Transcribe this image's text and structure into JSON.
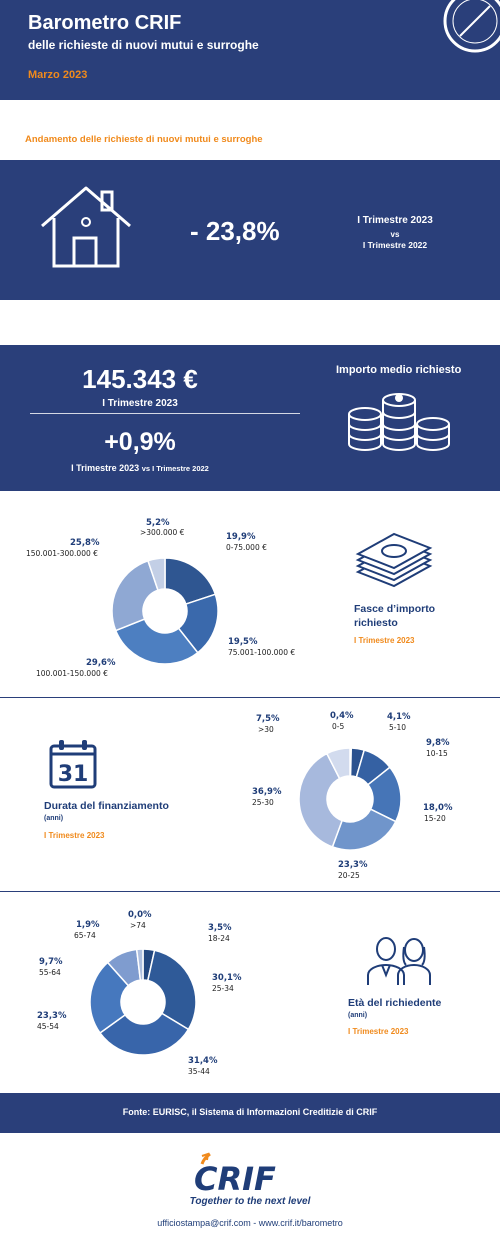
{
  "header": {
    "title": "Barometro CRIF",
    "subtitle": "delle richieste di nuovi mutui e surroghe",
    "date": "Marzo 2023"
  },
  "section_title": "Andamento delle richieste di nuovi mutui e surroghe",
  "trend": {
    "value": "- 23,8%",
    "period_a": "I Trimestre 2023",
    "vs": "vs",
    "period_b": "I Trimestre  2022"
  },
  "average": {
    "amount": "145.343 €",
    "amount_period": "I Trimestre 2023",
    "change": "+0,9%",
    "change_period": "I Trimestre 2023",
    "change_vs": "vs I Trimestre 2022",
    "title": "Importo medio richiesto"
  },
  "amount_bands": {
    "title_line1": "Fasce d’importo",
    "title_line2": "richiesto",
    "period": "I Trimestre  2023",
    "labels": [
      {
        "pct": "19,9%",
        "range": "0-75.000 €"
      },
      {
        "pct": "19,5%",
        "range": "75.001-100.000  €"
      },
      {
        "pct": "29,6%",
        "range": "100.001-150.000 €"
      },
      {
        "pct": "25,8%",
        "range": "150.001-300.000  €"
      },
      {
        "pct": "5,2%",
        "range": ">300.000  €"
      }
    ]
  },
  "duration": {
    "title": "Durata del finanziamento",
    "sub": "(anni)",
    "period": "I Trimestre  2023",
    "calendar_day": "31",
    "labels": [
      {
        "pct": "0,4%",
        "range": "0-5"
      },
      {
        "pct": "4,1%",
        "range": "5-10"
      },
      {
        "pct": "9,8%",
        "range": "10-15"
      },
      {
        "pct": "18,0%",
        "range": "15-20"
      },
      {
        "pct": "23,3%",
        "range": "20-25"
      },
      {
        "pct": "36,9%",
        "range": "25-30"
      },
      {
        "pct": "7,5%",
        "range": ">30"
      }
    ]
  },
  "age": {
    "title": "Età del richiedente",
    "sub": "(anni)",
    "period": "I Trimestre  2023",
    "labels": [
      {
        "pct": "3,5%",
        "range": "18-24"
      },
      {
        "pct": "30,1%",
        "range": "25-34"
      },
      {
        "pct": "31,4%",
        "range": "35-44"
      },
      {
        "pct": "23,3%",
        "range": "45-54"
      },
      {
        "pct": "9,7%",
        "range": "55-64"
      },
      {
        "pct": "1,9%",
        "range": "65-74"
      },
      {
        "pct": "0,0%",
        "range": ">74"
      }
    ]
  },
  "chart_data": [
    {
      "type": "pie",
      "categories": [
        "0-75.000 €",
        "75.001-100.000  €",
        "100.001-150.000 €",
        "150.001-300.000  €",
        ">300.000  €"
      ],
      "values": [
        19.9,
        19.5,
        29.6,
        25.8,
        5.2
      ],
      "colors": [
        "#2f5691",
        "#3a69ac",
        "#4d7fc1",
        "#8fa8d3",
        "#c3cfe6"
      ]
    },
    {
      "type": "pie",
      "categories": [
        "0-5",
        "5-10",
        "10-15",
        "15-20",
        "20-25",
        "25-30",
        ">30"
      ],
      "values": [
        0.4,
        4.1,
        9.8,
        18.0,
        23.3,
        36.9,
        7.5
      ],
      "colors": [
        "#23477f",
        "#2b528f",
        "#3561a3",
        "#4675b7",
        "#7095cb",
        "#a7b9dd",
        "#d2dbee"
      ]
    },
    {
      "type": "pie",
      "categories": [
        "18-24",
        "25-34",
        "35-44",
        "45-54",
        "55-64",
        "65-74",
        ">74"
      ],
      "values": [
        3.5,
        30.1,
        31.4,
        23.3,
        9.7,
        1.9,
        0.0
      ],
      "colors": [
        "#23477f",
        "#2f5a98",
        "#3865aa",
        "#4678be",
        "#7f9ccf",
        "#aebfdf",
        "#d2dbee"
      ]
    }
  ],
  "footer": {
    "source": "Fonte: EURISC, il Sistema di Informazioni Creditizie di CRIF",
    "logo_text": "CRIF",
    "slogan": "Together to the next level",
    "contacts": "ufficiostampa@crif.com - www.crif.it/barometro"
  }
}
